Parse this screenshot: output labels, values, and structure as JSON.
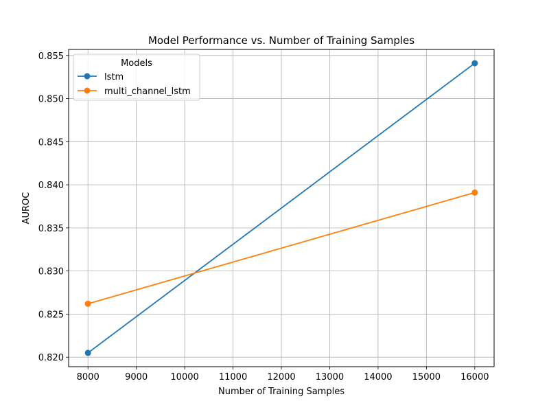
{
  "chart_data": {
    "type": "line",
    "title": "Model Performance vs. Number of Training Samples",
    "xlabel": "Number of Training Samples",
    "ylabel": "AUROC",
    "x": [
      8000,
      16000
    ],
    "xlim": [
      7600,
      16400
    ],
    "ylim": [
      0.8189,
      0.8557
    ],
    "xticks": [
      8000,
      9000,
      10000,
      11000,
      12000,
      13000,
      14000,
      15000,
      16000
    ],
    "yticks": [
      0.82,
      0.825,
      0.83,
      0.835,
      0.84,
      0.845,
      0.85,
      0.855
    ],
    "xtick_labels": [
      "8000",
      "9000",
      "10000",
      "11000",
      "12000",
      "13000",
      "14000",
      "15000",
      "16000"
    ],
    "ytick_labels": [
      "0.820",
      "0.825",
      "0.830",
      "0.835",
      "0.840",
      "0.845",
      "0.850",
      "0.855"
    ],
    "grid": true,
    "legend": {
      "title": "Models",
      "placement": "top-left"
    },
    "series": [
      {
        "name": "lstm",
        "values": [
          0.8205,
          0.8541
        ],
        "color": "#1f77b4",
        "marker": "circle"
      },
      {
        "name": "multi_channel_lstm",
        "values": [
          0.8262,
          0.8391
        ],
        "color": "#ff7f0e",
        "marker": "circle"
      }
    ]
  }
}
